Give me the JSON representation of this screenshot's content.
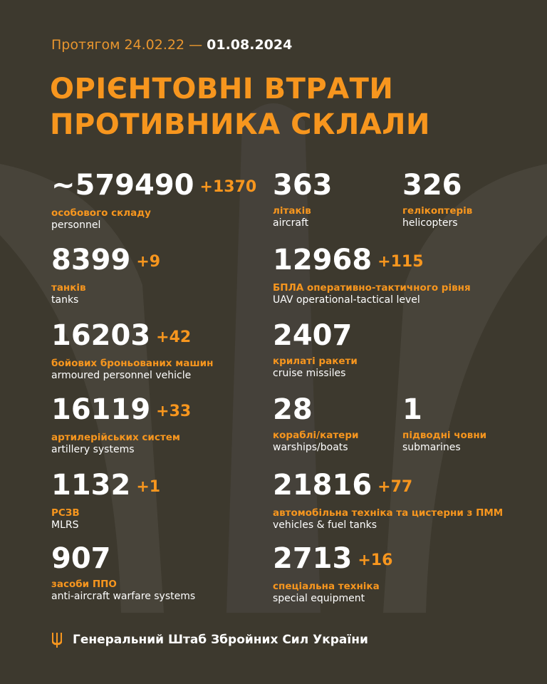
{
  "header": {
    "date_prefix": "Протягом 24.02.22 — ",
    "date_end": "01.08.2024",
    "title_line1": "ОРІЄНТОВНІ ВТРАТИ",
    "title_line2": "ПРОТИВНИКА СКЛАЛИ"
  },
  "items": [
    {
      "number": "~579490",
      "delta": "+1370",
      "label_ua": "особового складу",
      "label_en": "personnel"
    },
    {
      "number": "363",
      "delta": "",
      "label_ua": "літаків",
      "label_en": "aircraft"
    },
    {
      "number": "326",
      "delta": "",
      "label_ua": "гелікоптерів",
      "label_en": "helicopters"
    },
    {
      "number": "8399",
      "delta": "+9",
      "label_ua": "танків",
      "label_en": "tanks"
    },
    {
      "number": "12968",
      "delta": "+115",
      "label_ua": "БПЛА оперативно-тактичного рівня",
      "label_en": "UAV operational-tactical level"
    },
    {
      "number": "16203",
      "delta": "+42",
      "label_ua": "бойових броньованих машин",
      "label_en": "armoured personnel vehicle"
    },
    {
      "number": "2407",
      "delta": "",
      "label_ua": "крилаті ракети",
      "label_en": "cruise missiles"
    },
    {
      "number": "16119",
      "delta": "+33",
      "label_ua": "артилерійських систем",
      "label_en": "artillery systems"
    },
    {
      "number": "28",
      "delta": "",
      "label_ua": "кораблі/катери",
      "label_en": "warships/boats"
    },
    {
      "number": "1",
      "delta": "",
      "label_ua": "підводні човни",
      "label_en": "submarines"
    },
    {
      "number": "1132",
      "delta": "+1",
      "label_ua": "РСЗВ",
      "label_en": "MLRS"
    },
    {
      "number": "21816",
      "delta": "+77",
      "label_ua": "автомобільна техніка та цистерни з ПММ",
      "label_en": "vehicles & fuel tanks"
    },
    {
      "number": "907",
      "delta": "",
      "label_ua": "засоби ППО",
      "label_en": "anti-aircraft warfare systems"
    },
    {
      "number": "2713",
      "delta": "+16",
      "label_ua": "спеціальна техніка",
      "label_en": "special equipment"
    }
  ],
  "footer": {
    "text": "Генеральний Штаб Збройних Сил України",
    "icon": "trident-icon"
  },
  "colors": {
    "background": "#3d392e",
    "accent": "#f7961e",
    "text": "#ffffff"
  }
}
